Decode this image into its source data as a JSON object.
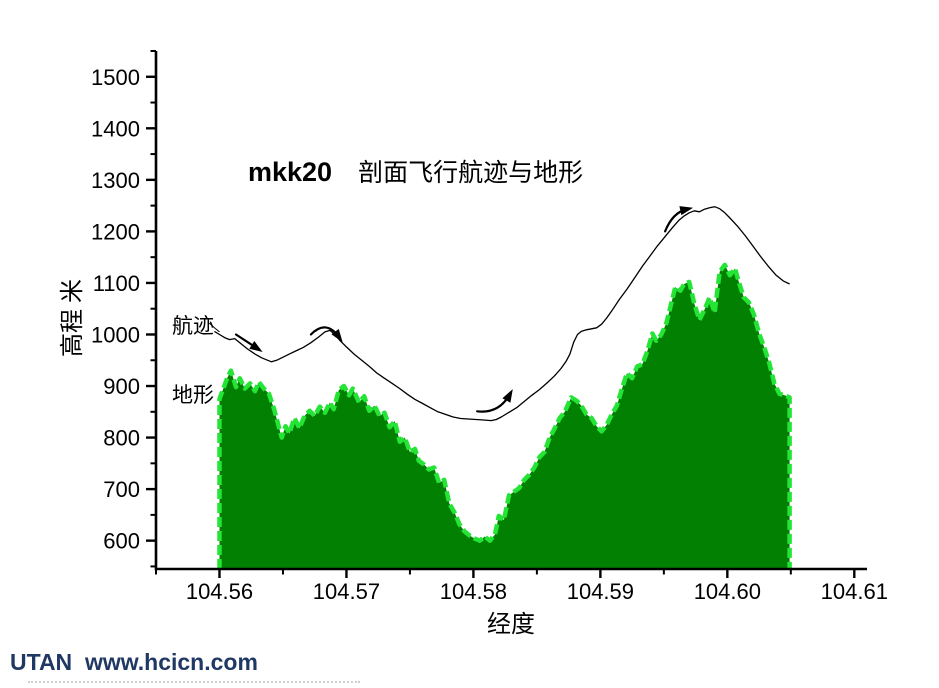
{
  "title": {
    "prefix": "mkk20",
    "main": "剖面飞行航迹与地形"
  },
  "footer": {
    "text": "UTAN  www.hcicn.com",
    "color": "#1F3864"
  },
  "chart_data": {
    "type": "area",
    "title": "mkk20 剖面飞行航迹与地形",
    "xlabel": "经度",
    "ylabel": "高程 米",
    "xlim": [
      104.555,
      104.611
    ],
    "ylim": [
      545,
      1550
    ],
    "grid": false,
    "x_ticks": {
      "values": [
        104.56,
        104.57,
        104.58,
        104.59,
        104.6,
        104.61
      ],
      "labels": [
        "104.56",
        "104.57",
        "104.58",
        "104.59",
        "104.60",
        "104.61"
      ],
      "minor_values": [
        104.555,
        104.565,
        104.575,
        104.585,
        104.595,
        104.605
      ]
    },
    "y_ticks": {
      "values": [
        600,
        700,
        800,
        900,
        1000,
        1100,
        1200,
        1300,
        1400,
        1500
      ],
      "labels": [
        "600",
        "700",
        "800",
        "900",
        "1000",
        "1100",
        "1200",
        "1300",
        "1400",
        "1500"
      ],
      "minor_values": [
        550,
        650,
        750,
        850,
        950,
        1050,
        1150,
        1250,
        1350,
        1450,
        1550
      ]
    },
    "colors": {
      "terrain_fill": "#028002",
      "terrain_edge": "#24E436",
      "line": "#000000",
      "axis": "#000000"
    },
    "series": [
      {
        "name": "地形",
        "type": "area",
        "points": [
          [
            104.56,
            875
          ],
          [
            104.5606,
            915
          ],
          [
            104.5609,
            930
          ],
          [
            104.5613,
            898
          ],
          [
            104.5616,
            915
          ],
          [
            104.562,
            895
          ],
          [
            104.5624,
            905
          ],
          [
            104.5628,
            890
          ],
          [
            104.5631,
            908
          ],
          [
            104.5635,
            895
          ],
          [
            104.5639,
            885
          ],
          [
            104.5643,
            855
          ],
          [
            104.5649,
            800
          ],
          [
            104.5652,
            822
          ],
          [
            104.5655,
            808
          ],
          [
            104.5659,
            838
          ],
          [
            104.5663,
            818
          ],
          [
            104.5667,
            842
          ],
          [
            104.5671,
            852
          ],
          [
            104.5675,
            842
          ],
          [
            104.5679,
            860
          ],
          [
            104.5683,
            848
          ],
          [
            104.5687,
            868
          ],
          [
            104.569,
            855
          ],
          [
            104.5694,
            892
          ],
          [
            104.5698,
            900
          ],
          [
            104.5702,
            882
          ],
          [
            104.5705,
            895
          ],
          [
            104.571,
            868
          ],
          [
            104.5714,
            880
          ],
          [
            104.5718,
            852
          ],
          [
            104.5722,
            862
          ],
          [
            104.5726,
            842
          ],
          [
            104.573,
            848
          ],
          [
            104.5734,
            820
          ],
          [
            104.5738,
            832
          ],
          [
            104.5742,
            792
          ],
          [
            104.5746,
            800
          ],
          [
            104.575,
            772
          ],
          [
            104.5754,
            778
          ],
          [
            104.5757,
            755
          ],
          [
            104.5761,
            748
          ],
          [
            104.5765,
            738
          ],
          [
            104.5769,
            742
          ],
          [
            104.5773,
            712
          ],
          [
            104.5777,
            718
          ],
          [
            104.5781,
            672
          ],
          [
            104.5785,
            655
          ],
          [
            104.5789,
            632
          ],
          [
            104.5793,
            618
          ],
          [
            104.5797,
            610
          ],
          [
            104.5801,
            604
          ],
          [
            104.5805,
            600
          ],
          [
            104.5809,
            608
          ],
          [
            104.5813,
            600
          ],
          [
            104.5817,
            612
          ],
          [
            104.582,
            648
          ],
          [
            104.5824,
            640
          ],
          [
            104.5828,
            688
          ],
          [
            104.5832,
            695
          ],
          [
            104.5836,
            702
          ],
          [
            104.584,
            718
          ],
          [
            104.5844,
            728
          ],
          [
            104.5848,
            742
          ],
          [
            104.5852,
            762
          ],
          [
            104.5856,
            772
          ],
          [
            104.586,
            800
          ],
          [
            104.5864,
            818
          ],
          [
            104.5868,
            838
          ],
          [
            104.5872,
            850
          ],
          [
            104.5877,
            878
          ],
          [
            104.5881,
            872
          ],
          [
            104.5885,
            862
          ],
          [
            104.5889,
            845
          ],
          [
            104.5893,
            838
          ],
          [
            104.5897,
            822
          ],
          [
            104.5901,
            812
          ],
          [
            104.5905,
            825
          ],
          [
            104.5909,
            845
          ],
          [
            104.5913,
            862
          ],
          [
            104.5917,
            895
          ],
          [
            104.5921,
            925
          ],
          [
            104.5925,
            915
          ],
          [
            104.5929,
            938
          ],
          [
            104.5933,
            942
          ],
          [
            104.5937,
            968
          ],
          [
            104.5941,
            1002
          ],
          [
            104.5944,
            988
          ],
          [
            104.5948,
            1000
          ],
          [
            104.5952,
            1022
          ],
          [
            104.5956,
            1062
          ],
          [
            104.5959,
            1092
          ],
          [
            104.5963,
            1085
          ],
          [
            104.5966,
            1098
          ],
          [
            104.597,
            1102
          ],
          [
            104.5974,
            1060
          ],
          [
            104.5978,
            1028
          ],
          [
            104.5982,
            1048
          ],
          [
            104.5986,
            1072
          ],
          [
            104.599,
            1042
          ],
          [
            104.5994,
            1122
          ],
          [
            104.5998,
            1135
          ],
          [
            104.6002,
            1115
          ],
          [
            104.6006,
            1128
          ],
          [
            104.6009,
            1102
          ],
          [
            104.6013,
            1072
          ],
          [
            104.6017,
            1062
          ],
          [
            104.6021,
            1038
          ],
          [
            104.6025,
            1002
          ],
          [
            104.6029,
            975
          ],
          [
            104.6033,
            945
          ],
          [
            104.6037,
            905
          ],
          [
            104.6041,
            885
          ],
          [
            104.6045,
            882
          ],
          [
            104.6049,
            878
          ]
        ]
      },
      {
        "name": "航迹",
        "type": "line",
        "points": [
          [
            104.5596,
            1006
          ],
          [
            104.56,
            1000
          ],
          [
            104.5604,
            994
          ],
          [
            104.5608,
            990
          ],
          [
            104.5612,
            992
          ],
          [
            104.5616,
            984
          ],
          [
            104.5622,
            972
          ],
          [
            104.5628,
            962
          ],
          [
            104.5633,
            955
          ],
          [
            104.5638,
            950
          ],
          [
            104.5641,
            947
          ],
          [
            104.5645,
            950
          ],
          [
            104.565,
            956
          ],
          [
            104.5655,
            962
          ],
          [
            104.566,
            968
          ],
          [
            104.5666,
            975
          ],
          [
            104.5672,
            984
          ],
          [
            104.5678,
            995
          ],
          [
            104.5683,
            1005
          ],
          [
            104.5687,
            1008
          ],
          [
            104.5691,
            1000
          ],
          [
            104.5695,
            988
          ],
          [
            104.57,
            976
          ],
          [
            104.5706,
            962
          ],
          [
            104.5712,
            950
          ],
          [
            104.5718,
            938
          ],
          [
            104.5724,
            925
          ],
          [
            104.573,
            915
          ],
          [
            104.5736,
            905
          ],
          [
            104.5742,
            895
          ],
          [
            104.5748,
            884
          ],
          [
            104.5754,
            874
          ],
          [
            104.576,
            866
          ],
          [
            104.5766,
            858
          ],
          [
            104.5772,
            850
          ],
          [
            104.5778,
            845
          ],
          [
            104.5784,
            840
          ],
          [
            104.579,
            837
          ],
          [
            104.5796,
            836
          ],
          [
            104.5802,
            835
          ],
          [
            104.5808,
            834
          ],
          [
            104.5814,
            833
          ],
          [
            104.5818,
            835
          ],
          [
            104.5822,
            840
          ],
          [
            104.5828,
            849
          ],
          [
            104.5834,
            858
          ],
          [
            104.584,
            870
          ],
          [
            104.5846,
            882
          ],
          [
            104.5852,
            893
          ],
          [
            104.5858,
            906
          ],
          [
            104.5864,
            920
          ],
          [
            104.5869,
            934
          ],
          [
            104.5873,
            948
          ],
          [
            104.5876,
            962
          ],
          [
            104.5879,
            985
          ],
          [
            104.5882,
            1000
          ],
          [
            104.5885,
            1006
          ],
          [
            104.5889,
            1009
          ],
          [
            104.5893,
            1011
          ],
          [
            104.5897,
            1013
          ],
          [
            104.5901,
            1020
          ],
          [
            104.5905,
            1032
          ],
          [
            104.5909,
            1046
          ],
          [
            104.5915,
            1068
          ],
          [
            104.5921,
            1088
          ],
          [
            104.5927,
            1110
          ],
          [
            104.5933,
            1132
          ],
          [
            104.5939,
            1152
          ],
          [
            104.5945,
            1172
          ],
          [
            104.5951,
            1190
          ],
          [
            104.5957,
            1208
          ],
          [
            104.5962,
            1222
          ],
          [
            104.5966,
            1230
          ],
          [
            104.597,
            1236
          ],
          [
            104.5974,
            1240
          ],
          [
            104.5978,
            1238
          ],
          [
            104.5982,
            1243
          ],
          [
            104.5986,
            1246
          ],
          [
            104.599,
            1248
          ],
          [
            104.5994,
            1244
          ],
          [
            104.5998,
            1236
          ],
          [
            104.6002,
            1226
          ],
          [
            104.6008,
            1210
          ],
          [
            104.6014,
            1192
          ],
          [
            104.602,
            1172
          ],
          [
            104.6026,
            1152
          ],
          [
            104.6032,
            1133
          ],
          [
            104.6038,
            1116
          ],
          [
            104.6044,
            1104
          ],
          [
            104.6049,
            1098
          ]
        ]
      }
    ],
    "arrows": [
      {
        "tail": [
          104.5613,
          1000
        ],
        "head": [
          104.5634,
          966
        ]
      },
      {
        "tail": [
          104.5672,
          1000
        ],
        "ctrl": [
          104.5684,
          1030
        ],
        "head": [
          104.5697,
          985
        ]
      },
      {
        "tail": [
          104.5803,
          851
        ],
        "ctrl": [
          104.582,
          846
        ],
        "head": [
          104.5831,
          894
        ]
      },
      {
        "tail": [
          104.5951,
          1200
        ],
        "ctrl": [
          104.5957,
          1237
        ],
        "head": [
          104.5973,
          1246
        ]
      }
    ],
    "labels": [
      {
        "text": "航迹",
        "leader": [
          [
            104.5592,
            1022
          ],
          [
            104.5596,
            1013
          ],
          [
            104.56,
            1005
          ]
        ]
      },
      {
        "text": "地形"
      }
    ]
  }
}
